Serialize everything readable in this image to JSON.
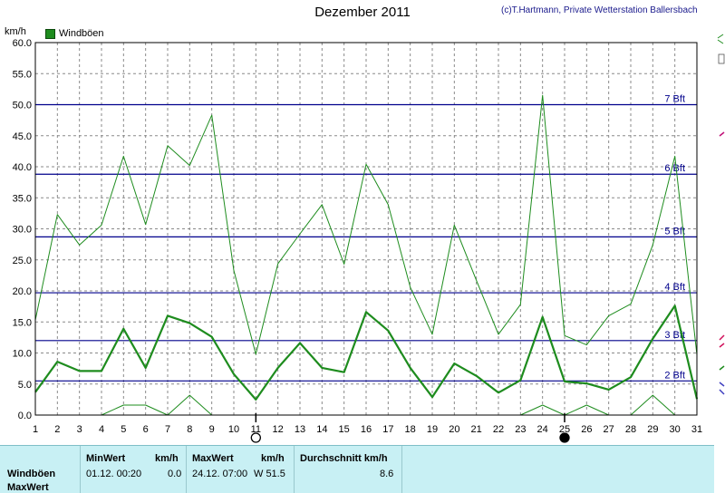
{
  "header": {
    "title": "Dezember 2011",
    "credit": "(c)T.Hartmann, Private Wetterstation Ballersbach",
    "unit": "km/h"
  },
  "chart_data": {
    "type": "line",
    "title": "Dezember 2011",
    "ylabel": "km/h",
    "ylim": [
      0,
      60
    ],
    "xlim": [
      1,
      31
    ],
    "x": [
      1,
      2,
      3,
      4,
      5,
      6,
      7,
      8,
      9,
      10,
      11,
      12,
      13,
      14,
      15,
      16,
      17,
      18,
      19,
      20,
      21,
      22,
      23,
      24,
      25,
      26,
      27,
      28,
      29,
      30,
      31
    ],
    "yticks": [
      "0.0",
      "5.0",
      "10.0",
      "15.0",
      "20.0",
      "25.0",
      "30.0",
      "35.0",
      "40.0",
      "45.0",
      "50.0",
      "55.0",
      "60.0"
    ],
    "xticks": [
      "1",
      "2",
      "3",
      "4",
      "5",
      "6",
      "7",
      "8",
      "9",
      "10",
      "11",
      "12",
      "13",
      "14",
      "15",
      "16",
      "17",
      "18",
      "19",
      "20",
      "21",
      "22",
      "23",
      "24",
      "25",
      "26",
      "27",
      "28",
      "29",
      "30",
      "31"
    ],
    "grid": true,
    "legend": "top-left",
    "series": [
      {
        "name": "Windböen",
        "role": "mean",
        "color": "#1e8c1e",
        "values": [
          3.7,
          8.6,
          7.1,
          7.1,
          13.9,
          7.6,
          16.0,
          14.8,
          12.6,
          6.6,
          2.5,
          7.6,
          11.6,
          7.6,
          6.9,
          16.6,
          13.6,
          7.6,
          2.9,
          8.3,
          6.3,
          3.6,
          5.6,
          15.8,
          5.4,
          5.1,
          4.1,
          6.1,
          12.3,
          17.6,
          2.6
        ]
      },
      {
        "role": "max",
        "color": "#1e8c1e",
        "values": [
          15.3,
          32.3,
          27.4,
          30.6,
          41.7,
          30.7,
          43.4,
          40.2,
          48.3,
          23.3,
          9.8,
          24.4,
          29.2,
          33.9,
          24.3,
          40.4,
          33.9,
          20.6,
          13.0,
          30.6,
          21.7,
          13.0,
          17.8,
          51.5,
          12.8,
          11.3,
          16.0,
          17.9,
          27.4,
          41.7,
          9.7
        ]
      },
      {
        "role": "min",
        "color": "#1e8c1e",
        "values": [
          0,
          0,
          0,
          0,
          1.6,
          1.6,
          0,
          3.2,
          0,
          0,
          0,
          0,
          0,
          0,
          0,
          0,
          0,
          0,
          0,
          0,
          0,
          0,
          0,
          1.6,
          0,
          1.6,
          0,
          0,
          3.2,
          0,
          0
        ]
      }
    ],
    "reference_lines": [
      {
        "label": "2 Bft",
        "value": 5.5
      },
      {
        "label": "3 Bft",
        "value": 12.0
      },
      {
        "label": "4 Bft",
        "value": 19.7
      },
      {
        "label": "5 Bft",
        "value": 28.7
      },
      {
        "label": "6 Bft",
        "value": 38.8
      },
      {
        "label": "7 Bft",
        "value": 50.0
      }
    ],
    "moon_phases": [
      {
        "day": 11,
        "phase": "full"
      },
      {
        "day": 25,
        "phase": "new"
      }
    ]
  },
  "stats": {
    "row_labels": [
      "Windböen",
      "MaxWert"
    ],
    "min_header": "MinWert",
    "min_unit": "km/h",
    "min_date": "01.12.  00:20",
    "min_value": "0.0",
    "max_header": "MaxWert",
    "max_unit": "km/h",
    "max_date": "24.12.  07:00",
    "max_value": "W 51.5",
    "avg_header": "Durchschnitt km/h",
    "avg_value": "8.6"
  },
  "colors": {
    "series": "#1e8c1e",
    "beaufort": "#00008c",
    "panel": "#c8f0f4"
  }
}
